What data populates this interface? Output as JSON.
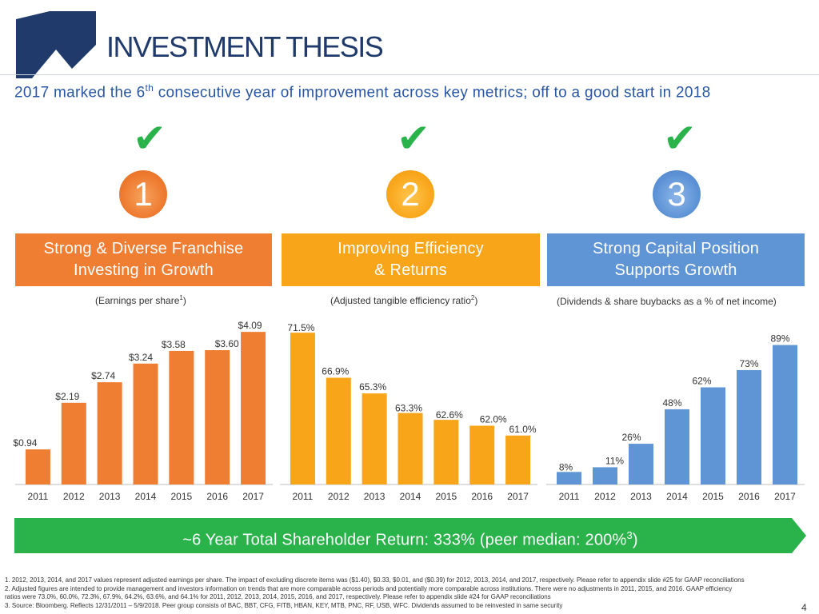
{
  "header": {
    "title": "INVESTMENT THESIS",
    "subtitle_pre": "2017 marked the 6",
    "subtitle_sup": "th",
    "subtitle_post": " consecutive year of improvement across key metrics; off to a good start in 2018"
  },
  "pillars": [
    {
      "number": "1",
      "line1": "Strong & Diverse Franchise",
      "line2": "Investing in Growth",
      "caption_pre": "(Earnings per share",
      "caption_sup": "1",
      "caption_post": ")",
      "check_icon": "checkmark-icon"
    },
    {
      "number": "2",
      "line1": "Improving Efficiency",
      "line2": "& Returns",
      "caption_pre": "(Adjusted tangible efficiency ratio",
      "caption_sup": "2",
      "caption_post": ")",
      "check_icon": "checkmark-icon"
    },
    {
      "number": "3",
      "line1": "Strong Capital Position",
      "line2": "Supports Growth",
      "caption_pre": "(Dividends & share buybacks as a % of net income)",
      "caption_sup": "",
      "caption_post": "",
      "check_icon": "checkmark-icon"
    }
  ],
  "chart_data": [
    {
      "type": "bar",
      "categories": [
        "2011",
        "2012",
        "2013",
        "2014",
        "2015",
        "2016",
        "2017"
      ],
      "values": [
        0.94,
        2.19,
        2.74,
        3.24,
        3.58,
        3.6,
        4.09
      ],
      "labels": [
        "$0.94",
        "$2.19",
        "$2.74",
        "$3.24",
        "$3.58",
        "$3.60",
        "$4.09"
      ],
      "ylim": [
        0,
        4.2
      ],
      "color": "#ef7d32",
      "grid": false
    },
    {
      "type": "bar",
      "categories": [
        "2011",
        "2012",
        "2013",
        "2014",
        "2015",
        "2016",
        "2017"
      ],
      "values": [
        71.5,
        66.9,
        65.3,
        63.3,
        62.6,
        62.0,
        61.0
      ],
      "labels": [
        "71.5%",
        "66.9%",
        "65.3%",
        "63.3%",
        "62.6%",
        "62.0%",
        "61.0%"
      ],
      "ylim": [
        56,
        72
      ],
      "color": "#f9a51a",
      "grid": false
    },
    {
      "type": "bar",
      "categories": [
        "2011",
        "2012",
        "2013",
        "2014",
        "2015",
        "2016",
        "2017"
      ],
      "values": [
        8,
        11,
        26,
        48,
        62,
        73,
        89
      ],
      "labels": [
        "8%",
        "11%",
        "26%",
        "48%",
        "62%",
        "73%",
        "89%"
      ],
      "ylim": [
        0,
        100
      ],
      "color": "#5f95d5",
      "grid": false
    }
  ],
  "banner": {
    "text_pre": "~6 Year Total Shareholder Return: 333% (peer median: 200%",
    "text_sup": "3",
    "text_post": ")",
    "color": "#2bb34b"
  },
  "footnotes": [
    "1. 2012, 2013, 2014, and 2017 values represent adjusted earnings per share. The impact of excluding discrete items was ($1.40), $0.33, $0.01, and ($0.39) for 2012, 2013, 2014, and 2017, respectively. Please refer to appendix slide #25 for GAAP reconciliations",
    "2. Adjusted figures are intended to provide management and investors information on trends that are more comparable across periods and potentially more comparable across institutions. There were no adjustments in 2011, 2015, and 2016. GAAP efficiency",
    "ratios were 73.0%, 60.0%, 72.3%, 67.9%, 64.2%, 63.6%, and 64.1% for 2011, 2012, 2013, 2014, 2015, 2016, and 2017, respectively. Please refer to appendix slide #24 for GAAP reconciliations",
    "3. Source: Bloomberg. Reflects 12/31/2011 – 5/9/2018. Peer group consists of BAC, BBT, CFG, FITB, HBAN, KEY, MTB, PNC, RF, USB, WFC. Dividends assumed to be reinvested in same security"
  ],
  "page_number": "4",
  "colors": {
    "title": "#1f3a6b",
    "subtitle": "#2957a4",
    "check": "#2bb34b"
  }
}
